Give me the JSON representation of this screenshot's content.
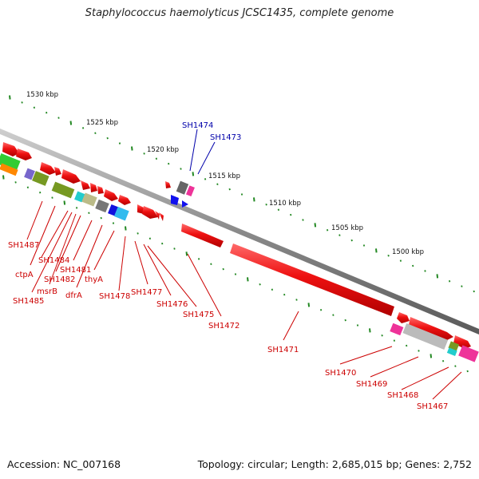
{
  "title": "Staphylococcus haemolyticus JCSC1435, complete genome",
  "footer": {
    "accession": "Accession: NC_007168",
    "topology": "Topology: circular; Length: 2,685,015 bp; Genes: 2,752"
  },
  "scale_labels": [
    "1530 kbp",
    "1525 kbp",
    "1520 kbp",
    "1515 kbp",
    "1510 kbp",
    "1505 kbp",
    "1500 kbp"
  ],
  "gene_labels": {
    "blue": [
      "SH1474",
      "SH1473"
    ],
    "red": [
      "SH1487",
      "ctpA",
      "SH1484",
      "SH1485",
      "msrB",
      "SH1482",
      "SH1481",
      "dfrA",
      "thyA",
      "SH1478",
      "SH1477",
      "SH1476",
      "SH1475",
      "SH1472",
      "SH1471",
      "SH1470",
      "SH1469",
      "SH1468",
      "SH1467"
    ]
  },
  "colors": {
    "forward_gene": "#ee1111",
    "label_red": "#cc0000",
    "label_blue": "#0000aa",
    "backbone": "#8a8a8a",
    "scale_tick": "#228822"
  }
}
